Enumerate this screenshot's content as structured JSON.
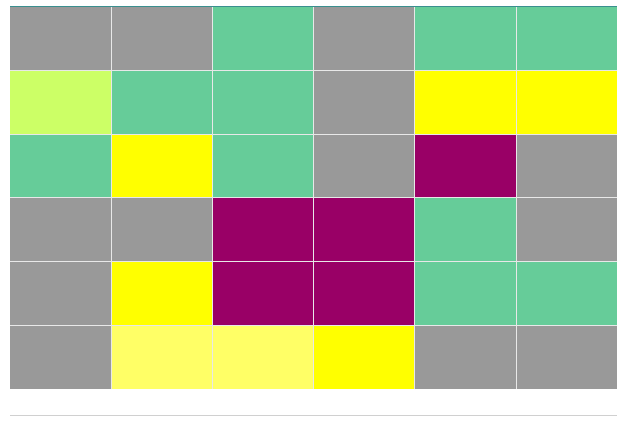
{
  "board": {
    "rows": [
      [
        "#999999",
        "#999999",
        "#66cc99",
        "#999999",
        "#66cc99",
        "#66cc99"
      ],
      [
        "#ccff66",
        "#66cc99",
        "#66cc99",
        "#999999",
        "#ffff00",
        "#ffff00"
      ],
      [
        "#66cc99",
        "#ffff00",
        "#66cc99",
        "#999999",
        "#990066",
        "#999999"
      ],
      [
        "#999999",
        "#999999",
        "#990066",
        "#990066",
        "#66cc99",
        "#999999"
      ],
      [
        "#999999",
        "#ffff00",
        "#990066",
        "#990066",
        "#66cc99",
        "#66cc99"
      ],
      [
        "#999999",
        "#ffff66",
        "#ffff66",
        "#ffff00",
        "#999999",
        "#999999"
      ]
    ]
  }
}
